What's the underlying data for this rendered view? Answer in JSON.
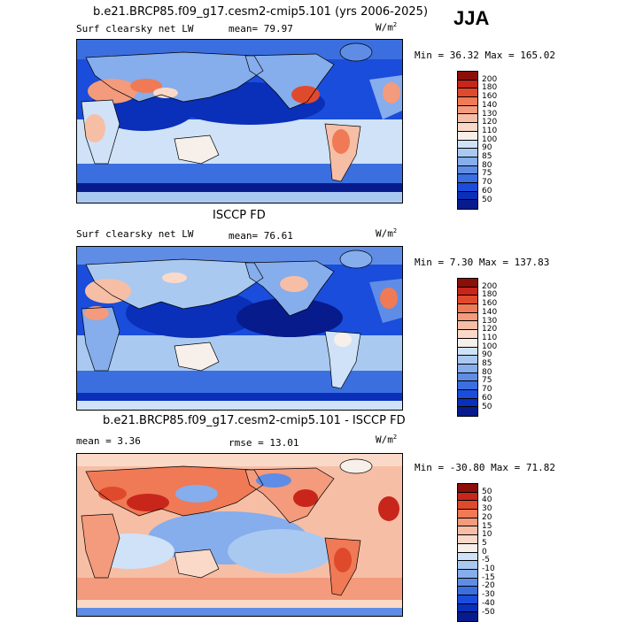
{
  "season": "JJA",
  "units": "W/m",
  "units_sup": "2",
  "chart_data": [
    {
      "type": "heatmap",
      "title": "b.e21.BRCP85.f09_g17.cesm2-cmip5.101 (yrs 2006-2025)",
      "left_label": "Surf clearsky net LW",
      "stat_text": "mean=  79.97",
      "minmax_text": "Min =  36.32 Max = 165.02",
      "colorbar_levels": [
        "200",
        "180",
        "160",
        "140",
        "130",
        "120",
        "110",
        "100",
        "90",
        "85",
        "80",
        "75",
        "70",
        "60",
        "50"
      ],
      "colorbar_colors": [
        "#8b0e08",
        "#c8261b",
        "#e04a2c",
        "#ef7a55",
        "#f39b7c",
        "#f7bea6",
        "#fbd9c8",
        "#f7f0ea",
        "#cfe2f7",
        "#a9c9f1",
        "#86adec",
        "#5f8de6",
        "#3b6fe0",
        "#1a4ddb",
        "#0a2fb8",
        "#071b8c"
      ]
    },
    {
      "type": "heatmap",
      "title": "ISCCP FD",
      "left_label": "Surf clearsky net LW",
      "stat_text": "mean=  76.61",
      "minmax_text": "Min =   7.30 Max = 137.83",
      "colorbar_levels": [
        "200",
        "180",
        "160",
        "140",
        "130",
        "120",
        "110",
        "100",
        "90",
        "85",
        "80",
        "75",
        "70",
        "60",
        "50"
      ],
      "colorbar_colors": [
        "#8b0e08",
        "#c8261b",
        "#e04a2c",
        "#ef7a55",
        "#f39b7c",
        "#f7bea6",
        "#fbd9c8",
        "#f7f0ea",
        "#cfe2f7",
        "#a9c9f1",
        "#86adec",
        "#5f8de6",
        "#3b6fe0",
        "#1a4ddb",
        "#0a2fb8",
        "#071b8c"
      ]
    },
    {
      "type": "heatmap",
      "title": "b.e21.BRCP85.f09_g17.cesm2-cmip5.101 - ISCCP FD",
      "left_label": "mean =    3.36",
      "stat_text": "rmse =   13.01",
      "minmax_text": "Min = -30.80 Max =  71.82",
      "colorbar_levels": [
        "50",
        "40",
        "30",
        "20",
        "15",
        "10",
        "5",
        "0",
        "-5",
        "-10",
        "-15",
        "-20",
        "-30",
        "-40",
        "-50"
      ],
      "colorbar_colors": [
        "#8b0e08",
        "#c8261b",
        "#e04a2c",
        "#ef7a55",
        "#f39b7c",
        "#f7bea6",
        "#fbd9c8",
        "#f7f0ea",
        "#cfe2f7",
        "#a9c9f1",
        "#86adec",
        "#5f8de6",
        "#3b6fe0",
        "#1a4ddb",
        "#0a2fb8",
        "#071b8c"
      ]
    }
  ]
}
